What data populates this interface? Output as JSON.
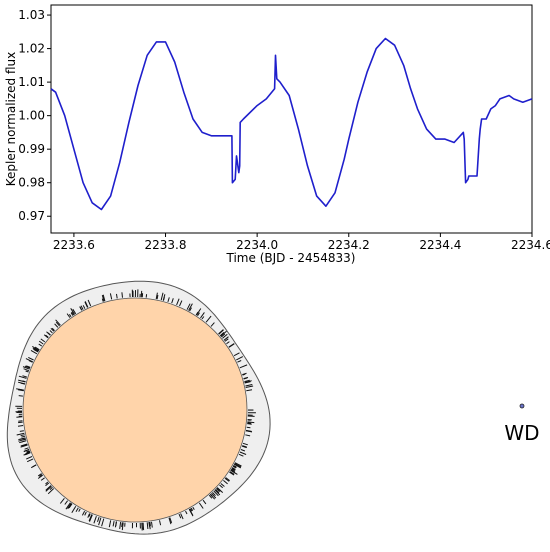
{
  "chart_data": [
    {
      "type": "line",
      "xlabel": "Time (BJD - 2454833)",
      "ylabel": "Kepler normalized flux",
      "xlim": [
        2233.55,
        2234.6
      ],
      "ylim": [
        0.965,
        1.033
      ],
      "xticks": [
        2233.6,
        2233.8,
        2234.0,
        2234.2,
        2234.4,
        2234.6
      ],
      "xtick_labels": [
        "2233.6",
        "2233.8",
        "2234.0",
        "2234.2",
        "2234.4",
        "2234.6"
      ],
      "yticks": [
        0.97,
        0.98,
        0.99,
        1.0,
        1.01,
        1.02,
        1.03
      ],
      "ytick_labels": [
        "0.97",
        "0.98",
        "0.99",
        "1.00",
        "1.01",
        "1.02",
        "1.03"
      ],
      "grid": false,
      "series": [
        {
          "color": "#1f1fcc",
          "x": [
            2233.55,
            2233.56,
            2233.58,
            2233.6,
            2233.62,
            2233.64,
            2233.66,
            2233.68,
            2233.7,
            2233.72,
            2233.74,
            2233.76,
            2233.78,
            2233.8,
            2233.82,
            2233.84,
            2233.86,
            2233.88,
            2233.9,
            2233.92,
            2233.94,
            2233.945,
            2233.946,
            2233.952,
            2233.955,
            2233.96,
            2233.962,
            2233.963,
            2233.97,
            2234.0,
            2234.02,
            2234.038,
            2234.04,
            2234.043,
            2234.05,
            2234.07,
            2234.09,
            2234.11,
            2234.13,
            2234.15,
            2234.17,
            2234.19,
            2234.2,
            2234.22,
            2234.24,
            2234.26,
            2234.28,
            2234.3,
            2234.32,
            2234.335,
            2234.35,
            2234.37,
            2234.39,
            2234.41,
            2234.43,
            2234.45,
            2234.452,
            2234.455,
            2234.46,
            2234.462,
            2234.48,
            2234.485,
            2234.487,
            2234.49,
            2234.5,
            2234.51,
            2234.52,
            2234.53,
            2234.55,
            2234.56,
            2234.58,
            2234.6
          ],
          "y": [
            1.008,
            1.007,
            1.0,
            0.99,
            0.98,
            0.974,
            0.972,
            0.976,
            0.986,
            0.998,
            1.009,
            1.018,
            1.022,
            1.022,
            1.016,
            1.007,
            0.999,
            0.995,
            0.994,
            0.994,
            0.994,
            0.994,
            0.98,
            0.981,
            0.988,
            0.983,
            0.985,
            0.998,
            0.999,
            1.003,
            1.005,
            1.008,
            1.018,
            1.011,
            1.01,
            1.006,
            0.996,
            0.985,
            0.976,
            0.973,
            0.977,
            0.987,
            0.993,
            1.004,
            1.013,
            1.02,
            1.023,
            1.021,
            1.015,
            1.008,
            1.002,
            0.996,
            0.993,
            0.993,
            0.992,
            0.995,
            0.993,
            0.98,
            0.981,
            0.982,
            0.982,
            0.993,
            0.996,
            0.999,
            0.999,
            1.002,
            1.003,
            1.005,
            1.006,
            1.005,
            1.004,
            1.005
          ]
        }
      ]
    },
    {
      "type": "diagram",
      "labels": [
        "WD"
      ],
      "star_fill": "#ffd4aa",
      "envelope_fill": "#efefef",
      "wd_color": "#6b74c9"
    }
  ]
}
